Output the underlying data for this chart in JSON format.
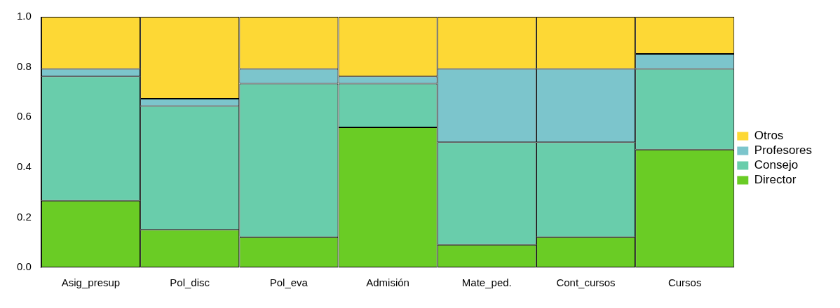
{
  "chart_data": {
    "type": "bar",
    "stacked": true,
    "categories": [
      "Asig_presup",
      "Pol_disc",
      "Pol_eva",
      "Admisión",
      "Mate_ped.",
      "Cont_cursos",
      "Cursos"
    ],
    "series": [
      {
        "name": "Director",
        "color": "#6acc25",
        "values": [
          0.266,
          0.15,
          0.121,
          0.559,
          0.09,
          0.121,
          0.47
        ]
      },
      {
        "name": "Consejo",
        "color": "#69cdab",
        "values": [
          0.496,
          0.494,
          0.612,
          0.174,
          0.409,
          0.378,
          0.322
        ]
      },
      {
        "name": "Profesores",
        "color": "#7cc5cc",
        "values": [
          0.03,
          0.029,
          0.059,
          0.029,
          0.293,
          0.293,
          0.06
        ]
      },
      {
        "name": "Otros",
        "color": "#fdd835",
        "values": [
          0.208,
          0.327,
          0.208,
          0.238,
          0.208,
          0.208,
          0.148
        ]
      }
    ],
    "ylim": [
      0,
      1
    ],
    "yticks": [
      {
        "value": 0,
        "label": "0.0"
      },
      {
        "value": 0.2,
        "label": "0.2"
      },
      {
        "value": 0.4,
        "label": "0.4"
      },
      {
        "value": 0.6,
        "label": "0.6"
      },
      {
        "value": 0.8,
        "label": "0.8"
      },
      {
        "value": 1,
        "label": "1.0"
      }
    ],
    "legend": "right",
    "grid": false
  }
}
